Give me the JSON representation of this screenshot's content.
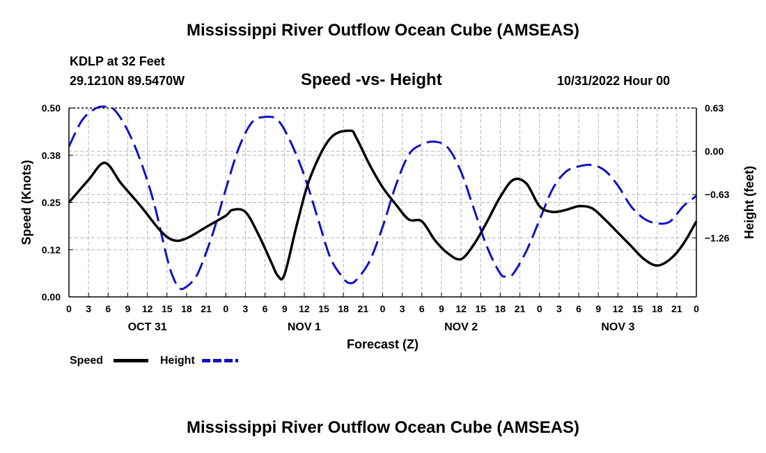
{
  "header": {
    "title": "Mississippi River Outflow Ocean Cube (AMSEAS)",
    "station": "KDLP at 32 Feet",
    "coords": "29.1210N  89.5470W",
    "chart_subtitle": "Speed -vs- Height",
    "datetime": "10/31/2022 Hour 00"
  },
  "footer": {
    "title": "Mississippi River Outflow Ocean Cube (AMSEAS)"
  },
  "legend": {
    "speed_label": "Speed",
    "height_label": "Height"
  },
  "colors": {
    "speed": "#000000",
    "height": "#1010c8",
    "grid": "#b4b4b4"
  },
  "chart_data": {
    "type": "line",
    "title": "Speed -vs- Height",
    "xlabel": "Forecast (Z)",
    "ylabel": "Speed (Knots)",
    "y2label": "Height (feet)",
    "xlim": [
      0,
      96
    ],
    "ylim": [
      0,
      0.5
    ],
    "y2lim": [
      -2.12,
      0.63
    ],
    "yticks": [
      0.0,
      0.125,
      0.25,
      0.375,
      0.5
    ],
    "ytick_labels": [
      "0.00",
      "0.12",
      "0.25",
      "0.38",
      "0.50"
    ],
    "y2ticks": [
      0.63,
      0.0,
      -0.63,
      -1.26
    ],
    "y2tick_labels": [
      "0.63",
      "0.00",
      "−0.63",
      "−1.26"
    ],
    "xticks": [
      0,
      3,
      6,
      9,
      12,
      15,
      18,
      21,
      24,
      27,
      30,
      33,
      36,
      39,
      42,
      45,
      48,
      51,
      54,
      57,
      60,
      63,
      66,
      69,
      72,
      75,
      78,
      81,
      84,
      87,
      90,
      93,
      96
    ],
    "xtick_labels": [
      "0",
      "3",
      "6",
      "9",
      "12",
      "15",
      "18",
      "21",
      "0",
      "3",
      "6",
      "9",
      "12",
      "15",
      "18",
      "21",
      "0",
      "3",
      "6",
      "9",
      "12",
      "15",
      "18",
      "21",
      "0",
      "3",
      "6",
      "9",
      "12",
      "15",
      "18",
      "21",
      "0"
    ],
    "day_labels": [
      {
        "x": 12,
        "label": "OCT 31"
      },
      {
        "x": 36,
        "label": "NOV 1"
      },
      {
        "x": 60,
        "label": "NOV 2"
      },
      {
        "x": 84,
        "label": "NOV 3"
      }
    ],
    "series": [
      {
        "name": "Speed",
        "axis": "left",
        "style": "solid",
        "x": [
          0,
          3,
          5.5,
          8,
          11,
          14,
          16,
          18,
          21,
          24,
          25,
          27,
          29,
          31,
          32,
          33,
          35,
          37,
          40,
          43,
          44,
          46,
          48,
          50,
          52,
          54,
          56,
          58,
          60,
          62,
          64,
          66,
          68,
          70,
          72,
          74,
          76,
          78,
          80,
          82,
          84,
          86,
          88,
          90,
          92,
          94,
          96
        ],
        "y": [
          0.25,
          0.31,
          0.355,
          0.3,
          0.24,
          0.175,
          0.15,
          0.155,
          0.185,
          0.215,
          0.23,
          0.225,
          0.165,
          0.09,
          0.055,
          0.06,
          0.2,
          0.32,
          0.42,
          0.44,
          0.42,
          0.35,
          0.29,
          0.245,
          0.205,
          0.2,
          0.15,
          0.115,
          0.1,
          0.14,
          0.2,
          0.265,
          0.31,
          0.3,
          0.24,
          0.225,
          0.23,
          0.24,
          0.235,
          0.205,
          0.17,
          0.135,
          0.1,
          0.083,
          0.1,
          0.14,
          0.2
        ]
      },
      {
        "name": "Height",
        "axis": "right",
        "style": "dashed",
        "x": [
          0,
          2,
          4,
          5.5,
          7,
          9,
          11,
          13,
          15,
          16,
          17,
          18,
          19,
          20,
          22,
          24,
          26,
          28,
          30,
          32,
          34,
          36,
          38,
          40,
          42,
          43,
          44,
          46,
          48,
          50,
          52,
          54,
          56,
          58,
          60,
          62,
          64,
          66,
          67,
          68,
          70,
          72,
          74,
          76,
          78,
          80,
          82,
          84,
          86,
          88,
          90,
          92,
          94,
          96
        ],
        "y": [
          0.07,
          0.45,
          0.62,
          0.65,
          0.6,
          0.3,
          -0.15,
          -0.75,
          -1.55,
          -1.85,
          -2.0,
          -1.97,
          -1.88,
          -1.72,
          -1.2,
          -0.55,
          0.05,
          0.42,
          0.5,
          0.45,
          0.12,
          -0.35,
          -0.95,
          -1.55,
          -1.85,
          -1.92,
          -1.87,
          -1.6,
          -1.1,
          -0.5,
          -0.05,
          0.1,
          0.14,
          0.05,
          -0.3,
          -0.85,
          -1.4,
          -1.78,
          -1.82,
          -1.78,
          -1.45,
          -1.0,
          -0.55,
          -0.3,
          -0.22,
          -0.2,
          -0.28,
          -0.5,
          -0.8,
          -0.98,
          -1.05,
          -1.02,
          -0.8,
          -0.65
        ]
      }
    ]
  }
}
